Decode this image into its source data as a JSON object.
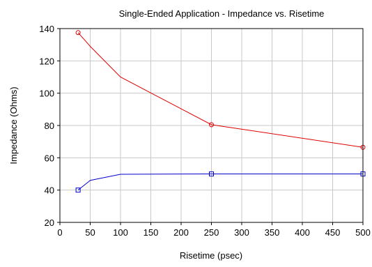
{
  "chart_data": {
    "type": "line",
    "title": "Single-Ended Application - Impedance vs. Risetime",
    "xlabel": "Risetime (psec)",
    "ylabel": "Impedance (Ohms)",
    "xlim": [
      0,
      500
    ],
    "ylim": [
      20,
      140
    ],
    "xticks": [
      0,
      50,
      100,
      150,
      200,
      250,
      300,
      350,
      400,
      450,
      500
    ],
    "yticks": [
      20,
      40,
      60,
      80,
      100,
      120,
      140
    ],
    "grid": true,
    "legend": "none",
    "series": [
      {
        "color": "#e00000",
        "marker": "circle",
        "points": [
          {
            "x": 30,
            "y": 137.5
          },
          {
            "x": 50,
            "y": 129
          },
          {
            "x": 100,
            "y": 110
          },
          {
            "x": 250,
            "y": 80.5
          },
          {
            "x": 500,
            "y": 66.5
          }
        ],
        "marker_indices": [
          0,
          3,
          4
        ]
      },
      {
        "color": "#0000cc",
        "marker": "square",
        "points": [
          {
            "x": 30,
            "y": 40
          },
          {
            "x": 50,
            "y": 46
          },
          {
            "x": 100,
            "y": 49.8
          },
          {
            "x": 250,
            "y": 50
          },
          {
            "x": 500,
            "y": 50
          }
        ],
        "marker_indices": [
          0,
          3,
          4
        ]
      }
    ]
  }
}
